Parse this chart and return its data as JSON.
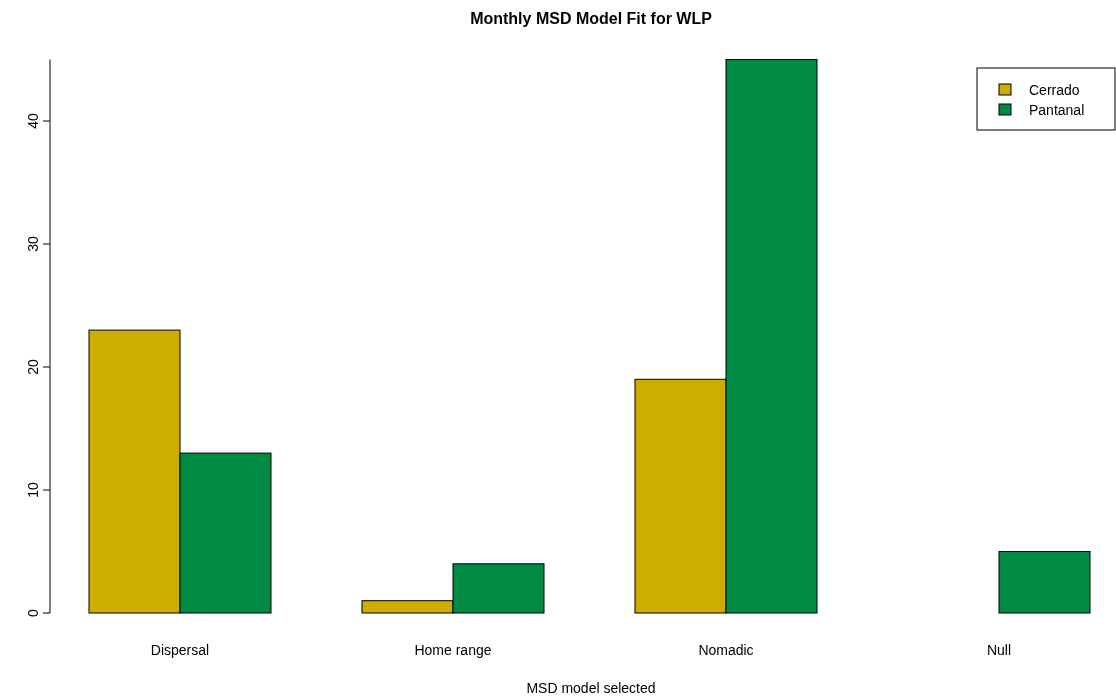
{
  "chart_data": {
    "type": "bar",
    "title": "Monthly MSD Model Fit for WLP",
    "xlabel": "MSD model selected",
    "categories": [
      "Dispersal",
      "Home range",
      "Nomadic",
      "Null"
    ],
    "series": [
      {
        "name": "Cerrado",
        "color": "#ccad00",
        "values": [
          23,
          1,
          19,
          0
        ]
      },
      {
        "name": "Pantanal",
        "color": "#008b45",
        "values": [
          13,
          4,
          45,
          5
        ]
      }
    ],
    "ylim": [
      0,
      45
    ],
    "yticks": [
      0,
      10,
      20,
      30,
      40
    ],
    "legend": "top right",
    "grid": false
  }
}
